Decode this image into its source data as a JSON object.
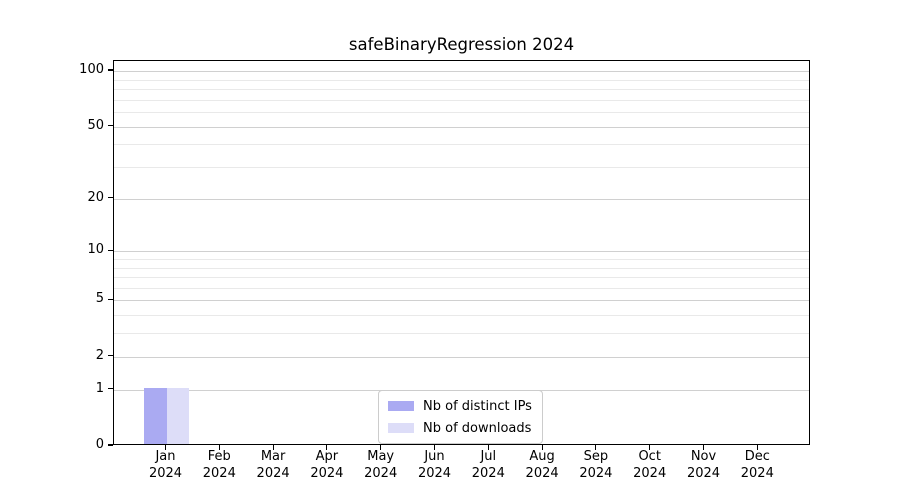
{
  "title": "safeBinaryRegression 2024",
  "chart_data": {
    "type": "bar",
    "title": "safeBinaryRegression 2024",
    "categories": [
      "Jan",
      "Feb",
      "Mar",
      "Apr",
      "May",
      "Jun",
      "Jul",
      "Aug",
      "Sep",
      "Oct",
      "Nov",
      "Dec"
    ],
    "category_year": "2024",
    "series": [
      {
        "name": "Nb of distinct IPs",
        "color": "#aaaaf2",
        "values": [
          1,
          0,
          0,
          0,
          0,
          0,
          0,
          0,
          0,
          0,
          0,
          0
        ]
      },
      {
        "name": "Nb of downloads",
        "color": "#ddddf8",
        "values": [
          1,
          0,
          0,
          0,
          0,
          0,
          0,
          0,
          0,
          0,
          0,
          0
        ]
      }
    ],
    "y_axis": {
      "scale": "log1p",
      "min": 0,
      "max": 100,
      "ticks": [
        0,
        1,
        2,
        5,
        10,
        20,
        50,
        100
      ],
      "minor_gridlines": [
        3,
        4,
        6,
        7,
        8,
        9,
        30,
        40,
        60,
        70,
        80,
        90
      ]
    },
    "xlabel": "",
    "ylabel": "",
    "grid": true,
    "legend_position": "lower center inside",
    "colors": {
      "major_gridline": "#d0d0d0",
      "minor_gridline": "#e9e9e9",
      "spine": "#000000",
      "background": "#ffffff"
    }
  }
}
